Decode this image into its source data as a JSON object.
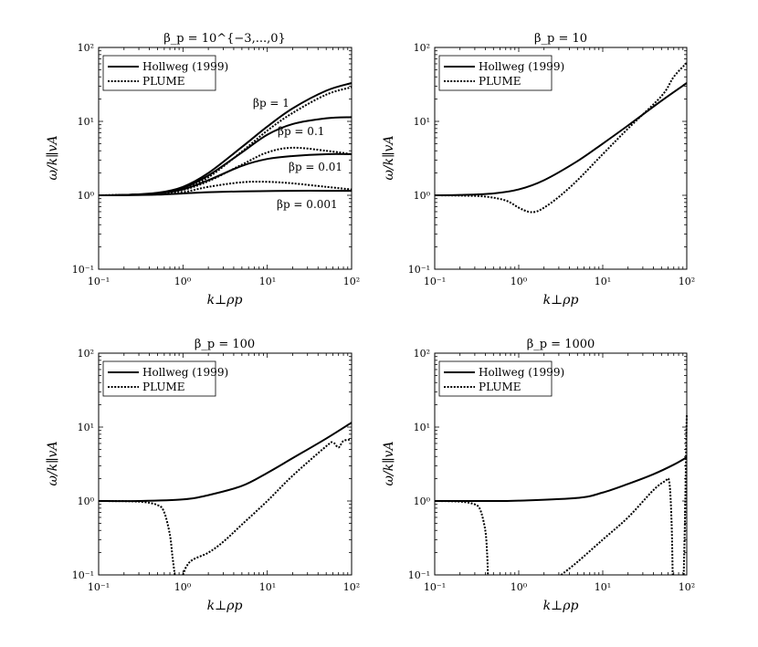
{
  "chart_data": [
    {
      "type": "line",
      "title": "β_p = 10^{−3,...,0}",
      "xlabel": "k⊥ρp",
      "ylabel": "ω/k∥vA",
      "xscale": "log",
      "yscale": "log",
      "xlim": [
        0.1,
        100
      ],
      "ylim": [
        0.1,
        100
      ],
      "x_ticks": [
        "10⁻¹",
        "10⁰",
        "10¹",
        "10²"
      ],
      "y_ticks": [
        "10⁻¹",
        "10⁰",
        "10¹",
        "10²"
      ],
      "legend": [
        "Hollweg (1999)",
        "PLUME"
      ],
      "annotations": [
        "βp = 1",
        "βp = 0.1",
        "βp = 0.01",
        "βp = 0.001"
      ],
      "series": [
        {
          "name": "Hollweg (1999)",
          "beta": "1",
          "style": "solid",
          "x": [
            0.1,
            0.2,
            0.5,
            1,
            2,
            5,
            10,
            20,
            50,
            100
          ],
          "y": [
            1.0,
            1.01,
            1.08,
            1.3,
            2.0,
            4.5,
            8.5,
            15,
            26,
            33
          ]
        },
        {
          "name": "PLUME",
          "beta": "1",
          "style": "dotted",
          "x": [
            0.1,
            0.2,
            0.5,
            1,
            2,
            5,
            10,
            20,
            50,
            100
          ],
          "y": [
            1.0,
            1.01,
            1.06,
            1.22,
            1.75,
            3.9,
            7.5,
            13,
            23,
            29
          ]
        },
        {
          "name": "Hollweg (1999)",
          "beta": "0.1",
          "style": "solid",
          "x": [
            0.1,
            0.2,
            0.5,
            1,
            2,
            5,
            10,
            20,
            50,
            100
          ],
          "y": [
            1.0,
            1.01,
            1.07,
            1.26,
            1.85,
            3.8,
            6.6,
            9.2,
            11.0,
            11.4
          ]
        },
        {
          "name": "PLUME",
          "beta": "0.1",
          "style": "dotted",
          "x": [
            0.1,
            0.2,
            0.5,
            1,
            2,
            5,
            10,
            20,
            50,
            100
          ],
          "y": [
            1.0,
            1.01,
            1.05,
            1.18,
            1.55,
            2.6,
            3.8,
            4.4,
            4.0,
            3.6
          ]
        },
        {
          "name": "Hollweg (1999)",
          "beta": "0.01",
          "style": "solid",
          "x": [
            0.1,
            0.2,
            0.5,
            1,
            2,
            5,
            10,
            20,
            50,
            100
          ],
          "y": [
            1.0,
            1.01,
            1.06,
            1.2,
            1.6,
            2.5,
            3.1,
            3.4,
            3.6,
            3.6
          ]
        },
        {
          "name": "PLUME",
          "beta": "0.01",
          "style": "dotted",
          "x": [
            0.1,
            0.2,
            0.5,
            1,
            2,
            5,
            10,
            20,
            50,
            100
          ],
          "y": [
            1.0,
            1.01,
            1.03,
            1.1,
            1.3,
            1.5,
            1.52,
            1.45,
            1.3,
            1.2
          ]
        },
        {
          "name": "Hollweg (1999)",
          "beta": "0.001",
          "style": "solid",
          "x": [
            0.1,
            0.2,
            0.5,
            1,
            2,
            5,
            10,
            20,
            50,
            100
          ],
          "y": [
            1.0,
            1.0,
            1.02,
            1.06,
            1.1,
            1.13,
            1.14,
            1.15,
            1.15,
            1.15
          ]
        }
      ]
    },
    {
      "type": "line",
      "title": "β_p = 10",
      "xlabel": "k⊥ρp",
      "ylabel": "ω/k∥vA",
      "xscale": "log",
      "yscale": "log",
      "xlim": [
        0.1,
        100
      ],
      "ylim": [
        0.1,
        100
      ],
      "x_ticks": [
        "10⁻¹",
        "10⁰",
        "10¹",
        "10²"
      ],
      "y_ticks": [
        "10⁻¹",
        "10⁰",
        "10¹",
        "10²"
      ],
      "legend": [
        "Hollweg (1999)",
        "PLUME"
      ],
      "series": [
        {
          "name": "Hollweg (1999)",
          "style": "solid",
          "x": [
            0.1,
            0.2,
            0.5,
            1,
            2,
            5,
            10,
            20,
            50,
            100
          ],
          "y": [
            1.0,
            1.01,
            1.06,
            1.2,
            1.6,
            2.9,
            5.0,
            8.8,
            19,
            33
          ]
        },
        {
          "name": "PLUME",
          "style": "dotted",
          "x": [
            0.1,
            0.2,
            0.4,
            0.7,
            1,
            1.3,
            1.6,
            2,
            3,
            5,
            10,
            20,
            50,
            70,
            100
          ],
          "y": [
            1.0,
            0.99,
            0.96,
            0.85,
            0.68,
            0.6,
            0.6,
            0.68,
            0.95,
            1.6,
            3.6,
            8,
            22,
            40,
            62
          ]
        }
      ]
    },
    {
      "type": "line",
      "title": "β_p = 100",
      "xlabel": "k⊥ρp",
      "ylabel": "ω/k∥vA",
      "xscale": "log",
      "yscale": "log",
      "xlim": [
        0.1,
        100
      ],
      "ylim": [
        0.1,
        100
      ],
      "x_ticks": [
        "10⁻¹",
        "10⁰",
        "10¹",
        "10²"
      ],
      "y_ticks": [
        "10⁻¹",
        "10⁰",
        "10¹",
        "10²"
      ],
      "legend": [
        "Hollweg (1999)",
        "PLUME"
      ],
      "series": [
        {
          "name": "Hollweg (1999)",
          "style": "solid",
          "x": [
            0.1,
            0.3,
            1,
            2,
            5,
            10,
            20,
            50,
            100
          ],
          "y": [
            1.0,
            1.0,
            1.05,
            1.2,
            1.6,
            2.4,
            3.8,
            7.0,
            11.5
          ]
        },
        {
          "name": "PLUME",
          "style": "dotted",
          "x": [
            0.1,
            0.3,
            0.5,
            0.6,
            0.7,
            0.75,
            0.8
          ],
          "y": [
            1.0,
            0.98,
            0.88,
            0.7,
            0.35,
            0.18,
            0.1
          ]
        },
        {
          "name": "PLUME",
          "style": "dotted",
          "x": [
            1.0,
            1.1,
            1.3,
            2,
            3,
            5,
            10,
            20,
            50,
            60,
            70,
            80,
            100
          ],
          "y": [
            0.1,
            0.13,
            0.16,
            0.2,
            0.28,
            0.48,
            1.0,
            2.2,
            5.5,
            6.2,
            5.3,
            6.5,
            6.8
          ]
        }
      ]
    },
    {
      "type": "line",
      "title": "β_p = 1000",
      "xlabel": "k⊥ρp",
      "ylabel": "ω/k∥vA",
      "xscale": "log",
      "yscale": "log",
      "xlim": [
        0.1,
        100
      ],
      "ylim": [
        0.1,
        100
      ],
      "x_ticks": [
        "10⁻¹",
        "10⁰",
        "10¹",
        "10²"
      ],
      "y_ticks": [
        "10⁻¹",
        "10⁰",
        "10¹",
        "10²"
      ],
      "legend": [
        "Hollweg (1999)",
        "PLUME"
      ],
      "series": [
        {
          "name": "Hollweg (1999)",
          "style": "solid",
          "x": [
            0.1,
            0.5,
            1,
            5,
            10,
            20,
            40,
            70,
            100
          ],
          "y": [
            1.0,
            1.0,
            1.01,
            1.1,
            1.3,
            1.7,
            2.3,
            3.1,
            3.9
          ]
        },
        {
          "name": "PLUME",
          "style": "dotted",
          "x": [
            0.1,
            0.2,
            0.3,
            0.35,
            0.4,
            0.42,
            0.43
          ],
          "y": [
            1.0,
            0.98,
            0.9,
            0.75,
            0.4,
            0.2,
            0.1
          ]
        },
        {
          "name": "PLUME",
          "style": "dotted",
          "x": [
            3.2,
            5,
            10,
            20,
            40,
            55,
            62,
            66,
            68
          ],
          "y": [
            0.1,
            0.15,
            0.3,
            0.6,
            1.4,
            1.85,
            1.8,
            0.5,
            0.1
          ]
        },
        {
          "name": "PLUME",
          "style": "dotted",
          "x": [
            92,
            95,
            97,
            99,
            100
          ],
          "y": [
            0.1,
            0.5,
            2,
            8,
            15
          ]
        }
      ]
    }
  ]
}
